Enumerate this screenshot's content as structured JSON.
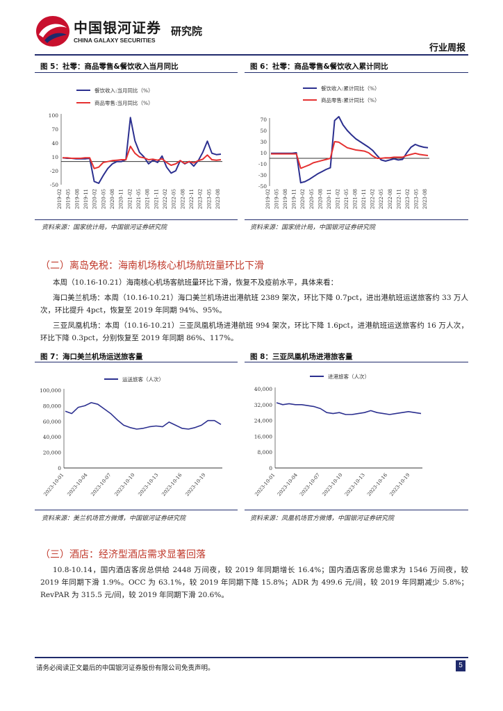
{
  "header": {
    "company_zh": "中国银河证券",
    "company_en": "CHINA GALAXY SECURITIES",
    "institute": "研究院",
    "report_type": "行业周报"
  },
  "fig5": {
    "title": "图 5：社零：商品零售&餐饮收入当月同比",
    "source": "资料来源：国家统计局，中国银河证券研究院",
    "chart_data": {
      "type": "line",
      "series": [
        {
          "name": "餐饮收入:当月同比（%）",
          "color": "#2b2f8f",
          "values": [
            8,
            7,
            7,
            6,
            6,
            6,
            7,
            -43,
            -47,
            -30,
            -15,
            -5,
            0,
            0,
            4,
            95,
            45,
            20,
            10,
            -5,
            3,
            -2,
            12,
            -12,
            -25,
            -20,
            2,
            -5,
            0,
            -10,
            2,
            20,
            44,
            18,
            15,
            16
          ]
        },
        {
          "name": "商品零售:当月同比（%）",
          "color": "#e53030",
          "values": [
            8,
            8,
            7,
            7,
            7,
            8,
            8,
            -15,
            -12,
            -2,
            0,
            2,
            3,
            4,
            4,
            33,
            18,
            10,
            8,
            4,
            5,
            3,
            6,
            -2,
            -8,
            -5,
            2,
            -4,
            0,
            -3,
            2,
            5,
            14,
            4,
            3,
            4
          ]
        }
      ],
      "ylim": [
        -50,
        100
      ],
      "yticks": [
        "100",
        "70",
        "40",
        "10",
        "-20",
        "-50"
      ],
      "xticks": [
        "2019-02",
        "2019-05",
        "2019-08",
        "2019-11",
        "2020-02",
        "2020-05",
        "2020-08",
        "2020-11",
        "2021-02",
        "2021-05",
        "2021-08",
        "2021-11",
        "2022-02",
        "2022-05",
        "2022-08",
        "2022-11",
        "2023-02",
        "2023-05",
        "2023-08"
      ]
    }
  },
  "fig6": {
    "title": "图 6：社零：商品零售&餐饮收入累计同比",
    "source": "资料来源：国家统计局，中国银河证券研究院",
    "chart_data": {
      "type": "line",
      "series": [
        {
          "name": "餐饮收入:累计同比（%）",
          "color": "#2b2f8f",
          "values": [
            9,
            9,
            9,
            9,
            9,
            9,
            10,
            -44,
            -42,
            -38,
            -33,
            -28,
            -24,
            -20,
            -17,
            68,
            75,
            60,
            50,
            42,
            35,
            30,
            25,
            20,
            14,
            5,
            -3,
            -5,
            -3,
            -1,
            -3,
            -2,
            10,
            20,
            25,
            22,
            20,
            19
          ]
        },
        {
          "name": "商品零售:累计同比（%）",
          "color": "#e53030",
          "values": [
            8,
            8,
            8,
            8,
            8,
            8,
            8,
            -18,
            -15,
            -12,
            -8,
            -6,
            -4,
            -2,
            0,
            30,
            29,
            24,
            19,
            17,
            15,
            14,
            13,
            10,
            4,
            0,
            0,
            1,
            1,
            2,
            2,
            2,
            5,
            7,
            9,
            7,
            6,
            5
          ]
        }
      ],
      "ylim": [
        -50,
        70
      ],
      "yticks": [
        "70",
        "50",
        "30",
        "10",
        "-10",
        "-30",
        "-50"
      ],
      "xticks": [
        "2019-02",
        "2019-05",
        "2019-08",
        "2019-11",
        "2020-02",
        "2020-05",
        "2020-08",
        "2020-11",
        "2021-02",
        "2021-05",
        "2021-08",
        "2021-11",
        "2022-02",
        "2022-05",
        "2022-08",
        "2022-11",
        "2023-02",
        "2023-05",
        "2023-08"
      ]
    }
  },
  "section2": {
    "heading": "（二）离岛免税：海南机场核心机场航班量环比下滑",
    "p1": "本周（10.16-10.21）海南核心机场客航班量环比下滑，恢复不及疫前水平，具体来看：",
    "p2": "海口美兰机场：本周（10.16-10.21）海口美兰机场进出港航班 2389 架次，环比下降 0.7pct，进出港航班运送旅客约 33 万人次，环比提升 4pct，恢复至 2019 年同期 94%、95%。",
    "p3": "三亚凤凰机场：本周（10.16-10.21）三亚凤凰机场进港航班 994 架次，环比下降 1.6pct，进港航班运送旅客约 16 万人次，环比下降 0.3pct，分别恢复至 2019 年同期 86%、117%。"
  },
  "fig7": {
    "title": "图 7：海口美兰机场运送旅客量",
    "source": "资料来源：美兰机场官方微博，中国银河证券研究院",
    "chart_data": {
      "type": "line",
      "series": [
        {
          "name": "运送旅客（人次）",
          "color": "#2b2f8f",
          "values": [
            73000,
            70000,
            78000,
            80000,
            84000,
            82000,
            76000,
            70000,
            62000,
            55000,
            52000,
            50000,
            51000,
            53000,
            54000,
            53000,
            59000,
            55000,
            51000,
            50000,
            52000,
            55000,
            61000,
            61000,
            56000
          ]
        }
      ],
      "ylim": [
        0,
        100000
      ],
      "yticks": [
        "100,000",
        "80,000",
        "60,000",
        "40,000",
        "20,000",
        "0"
      ],
      "xticks": [
        "2023-10-01",
        "2023-10-04",
        "2023-10-07",
        "2023-10-10",
        "2023-10-13",
        "2023-10-16",
        "2023-10-19"
      ]
    }
  },
  "fig8": {
    "title": "图 8：三亚凤凰机场进港旅客量",
    "source": "资料来源：凤凰机场官方微博，中国银河证券研究院",
    "chart_data": {
      "type": "line",
      "series": [
        {
          "name": "进港旅客（人次）",
          "color": "#2b2f8f",
          "values": [
            33000,
            32000,
            32500,
            32000,
            32000,
            31500,
            31000,
            30000,
            28000,
            27500,
            28000,
            27000,
            27000,
            27500,
            28000,
            29000,
            28000,
            27500,
            27000,
            27500,
            28000,
            28500,
            28000,
            27500
          ]
        }
      ],
      "ylim": [
        0,
        40000
      ],
      "yticks": [
        "40,000",
        "32,000",
        "24,000",
        "16,000",
        "8,000",
        "0"
      ],
      "xticks": [
        "2023-10-01",
        "2023-10-04",
        "2023-10-07",
        "2023-10-10",
        "2023-10-13",
        "2023-10-16",
        "2023-10-19"
      ]
    }
  },
  "section3": {
    "heading": "（三）酒店：经济型酒店需求显著回落",
    "p1": "10.8-10.14，国内酒店客房总供给 2448 万间夜，较 2019 年同期增长 16.4%；国内酒店客房总需求为 1546 万间夜，较 2019 年同期下滑 1.9%。OCC 为 63.1%，较 2019 年同期下降 15.8%；ADR 为 499.6 元/间，较 2019 年同期减少 5.8%；RevPAR 为 315.5 元/间，较 2019 年同期下滑 20.6%。"
  },
  "footer": {
    "disclaimer": "请务必阅读正文最后的中国银河证券股份有限公司免责声明。",
    "page_number": "5"
  }
}
